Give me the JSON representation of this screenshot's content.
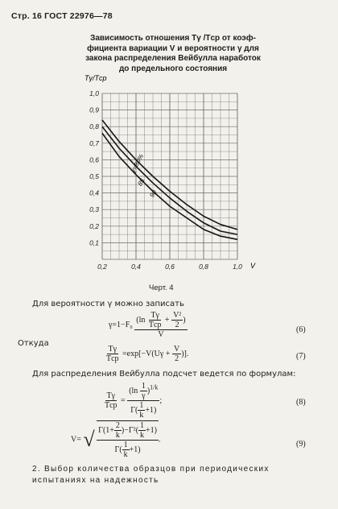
{
  "header": "Стр. 16 ГОСТ 22976—78",
  "chart_title": [
    "Зависимость отношения Tγ /Tср от коэф-",
    "фициента вариации V и вероятности γ для",
    "закона распределения Вейбулла наработок",
    "до предельного состояния"
  ],
  "chart_data": {
    "type": "line",
    "ylabel": "Tγ/Tср",
    "xlabel": "V",
    "xlim": [
      0.2,
      1.0
    ],
    "ylim": [
      0,
      1.0
    ],
    "x_ticks": [
      "0,2",
      "0,4",
      "0,6",
      "0,8",
      "1,0"
    ],
    "y_ticks": [
      "0,1",
      "0,2",
      "0,3",
      "0,4",
      "0,5",
      "0,6",
      "0,7",
      "0,8",
      "0,9",
      "1,0"
    ],
    "grid": true,
    "series": [
      {
        "name": "γ=80%",
        "x": [
          0.2,
          0.3,
          0.4,
          0.5,
          0.6,
          0.7,
          0.8,
          0.9,
          1.0
        ],
        "y": [
          0.84,
          0.71,
          0.6,
          0.5,
          0.41,
          0.33,
          0.26,
          0.21,
          0.18
        ]
      },
      {
        "name": "85",
        "x": [
          0.2,
          0.3,
          0.4,
          0.5,
          0.6,
          0.7,
          0.8,
          0.9,
          1.0
        ],
        "y": [
          0.8,
          0.67,
          0.56,
          0.46,
          0.37,
          0.29,
          0.22,
          0.17,
          0.15
        ]
      },
      {
        "name": "90",
        "x": [
          0.2,
          0.3,
          0.4,
          0.5,
          0.6,
          0.7,
          0.8,
          0.9,
          1.0
        ],
        "y": [
          0.76,
          0.62,
          0.51,
          0.41,
          0.32,
          0.25,
          0.18,
          0.14,
          0.12
        ]
      }
    ]
  },
  "caption": "Черт. 4",
  "text1": "Для вероятности γ можно записать",
  "eq6": {
    "lhs": "γ=1−F₀",
    "ln": "ln",
    "t_num": "Tγ",
    "t_den": "Tср",
    "plus": "+",
    "v2_num": "V²",
    "v2_den": "2",
    "big_den": "V",
    "num": "(6)"
  },
  "text2": "Откуда",
  "eq7": {
    "t_num": "Tγ",
    "t_den": "Tср",
    "rhs": "=exp",
    "inner": "−V(Uγ +",
    "v_num": "V",
    "v_den": "2",
    "close": ")",
    "num": "(7)"
  },
  "text3": "Для распределения Вейбулла подсчет ведется по формулам:",
  "eq8": {
    "t_num": "Tγ",
    "t_den": "Tср",
    "eq": "=",
    "ln": "ln",
    "one": "1",
    "gamma": "γ",
    "exp": "1/k",
    "den": "Γ",
    "one_k_num": "1",
    "one_k_den": "k",
    "plus_one": "+1",
    "semicolon": ";",
    "num": "(8)"
  },
  "eq9": {
    "v": "V=",
    "g1": "Γ",
    "two_num": "2",
    "two_den": "k",
    "one_plus": "1+",
    "minus": "−Γ²",
    "one_num": "1",
    "one_den": "k",
    "plus1": "+1",
    "den_g": "Γ",
    "den_num": "1",
    "den_den": "k",
    "dot": ".",
    "num": "(9)"
  },
  "section": "2. Выбор количества образцов при периодических испытаниях на надежность"
}
